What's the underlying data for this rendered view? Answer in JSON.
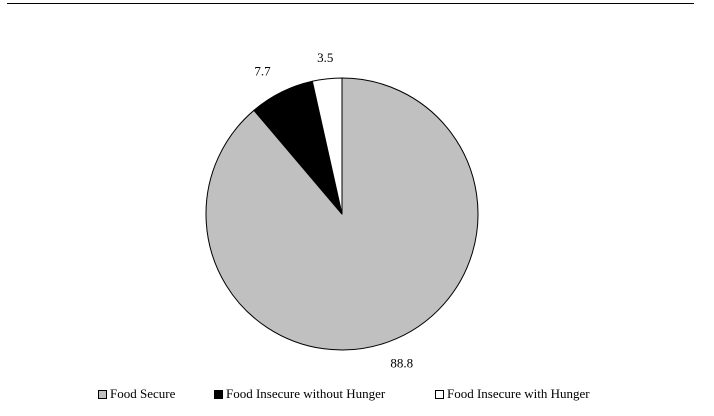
{
  "chart_data": {
    "type": "pie",
    "title": "",
    "slices": [
      {
        "label": "Food Secure",
        "value": 88.8,
        "value_label": "88.8",
        "color": "#c0c0c0"
      },
      {
        "label": "Food Insecure without Hunger",
        "value": 7.7,
        "value_label": "7.7",
        "color": "#000000"
      },
      {
        "label": "Food Insecure with Hunger",
        "value": 3.5,
        "value_label": "3.5",
        "color": "#ffffff"
      }
    ],
    "start": "12 o'clock",
    "direction": "clockwise",
    "legend_position": "bottom"
  }
}
